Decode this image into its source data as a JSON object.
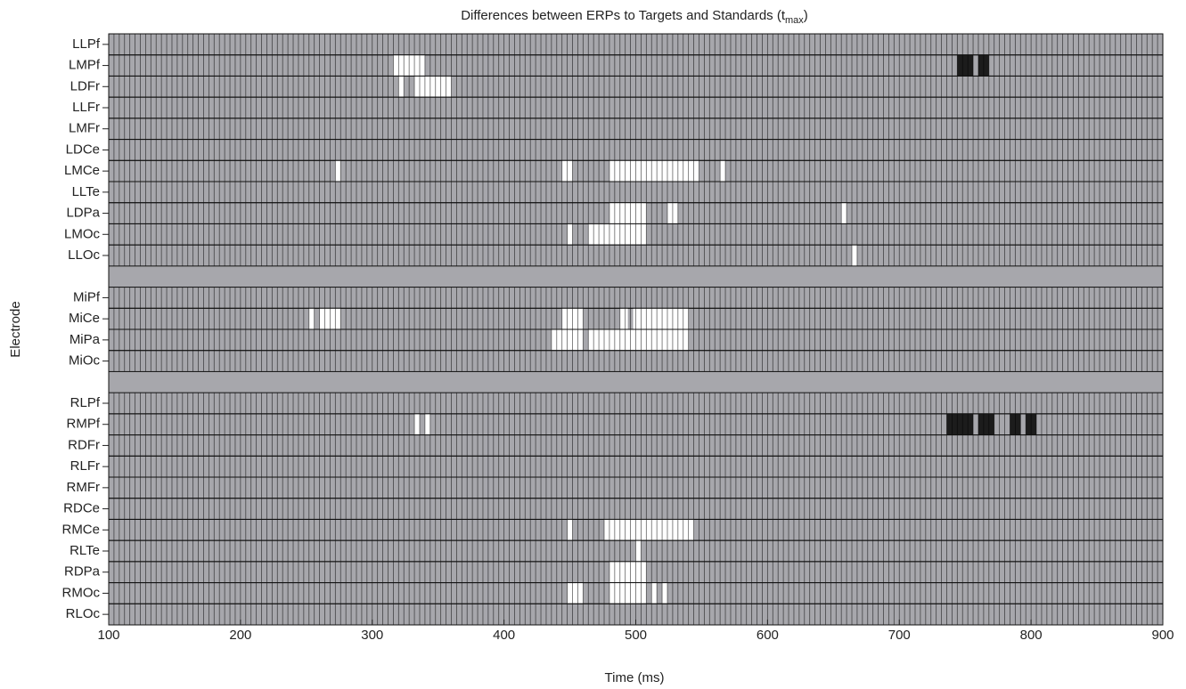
{
  "chart_data": {
    "type": "raster",
    "title": "Differences between ERPs to Targets and Standards (t",
    "title_subscript": "max",
    "title_end": ")",
    "xlabel": "Time (ms)",
    "ylabel": "Electrode",
    "xlim": [
      100,
      900
    ],
    "xticks": [
      100,
      200,
      300,
      400,
      500,
      600,
      700,
      800,
      900
    ],
    "bin_width": 4,
    "background_color": "#a7a7ac",
    "categories": [
      "LLPf",
      "LMPf",
      "LDFr",
      "LLFr",
      "LMFr",
      "LDCe",
      "LMCe",
      "LLTe",
      "LDPa",
      "LMOc",
      "LLOc",
      null,
      "MiPf",
      "MiCe",
      "MiPa",
      "MiOc",
      null,
      "RLPf",
      "RMPf",
      "RDFr",
      "RLFr",
      "RMFr",
      "RDCe",
      "RMCe",
      "RLTe",
      "RDPa",
      "RMOc",
      "RLOc"
    ],
    "series": [
      {
        "color": "#ffffff",
        "values": [
          [],
          [
            [
              316,
              340
            ]
          ],
          [
            [
              320,
              324
            ],
            [
              332,
              360
            ]
          ],
          [],
          [],
          [],
          [
            [
              272,
              276
            ],
            [
              444,
              452
            ],
            [
              480,
              548
            ],
            [
              564,
              568
            ]
          ],
          [],
          [
            [
              480,
              508
            ],
            [
              524,
              532
            ],
            [
              656,
              660
            ]
          ],
          [
            [
              448,
              452
            ],
            [
              464,
              508
            ]
          ],
          [
            [
              664,
              668
            ]
          ],
          [],
          [],
          [
            [
              252,
              256
            ],
            [
              260,
              276
            ],
            [
              444,
              460
            ],
            [
              488,
              494
            ],
            [
              498,
              540
            ]
          ],
          [
            [
              436,
              460
            ],
            [
              464,
              540
            ]
          ],
          [],
          [],
          [],
          [
            [
              332,
              336
            ],
            [
              340,
              344
            ]
          ],
          [],
          [],
          [],
          [],
          [
            [
              448,
              452
            ],
            [
              476,
              544
            ]
          ],
          [
            [
              500,
              504
            ]
          ],
          [
            [
              480,
              508
            ]
          ],
          [
            [
              448,
              460
            ],
            [
              480,
              508
            ],
            [
              512,
              516
            ],
            [
              520,
              524
            ]
          ],
          []
        ]
      },
      {
        "color": "#1c1c1c",
        "values": [
          [],
          [
            [
              744,
              756
            ],
            [
              760,
              768
            ]
          ],
          [],
          [],
          [],
          [],
          [],
          [],
          [],
          [],
          [],
          [],
          [],
          [],
          [],
          [],
          [],
          [],
          [
            [
              736,
              756
            ],
            [
              760,
              772
            ],
            [
              784,
              792
            ],
            [
              796,
              804
            ]
          ],
          [],
          [],
          [],
          [],
          [],
          [],
          [],
          [],
          []
        ]
      }
    ]
  }
}
